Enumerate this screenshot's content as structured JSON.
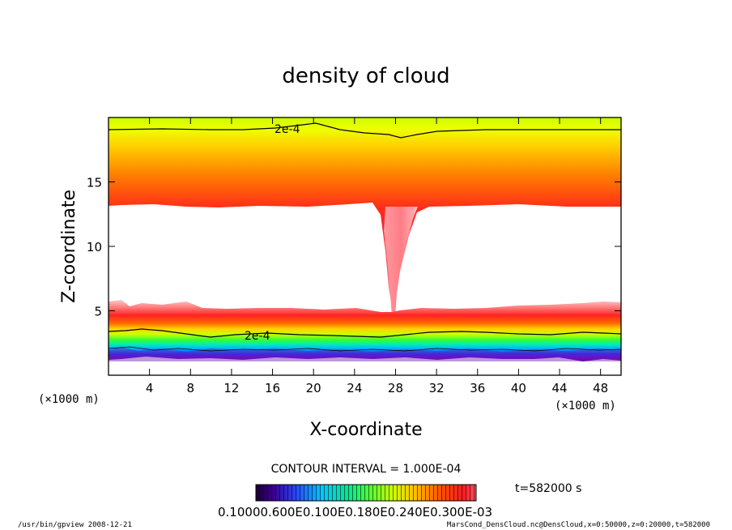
{
  "chart_data": {
    "type": "heatmap",
    "title": "density of cloud",
    "xlabel": "X-coordinate",
    "ylabel": "Z-coordinate",
    "xunit": "(×1000 m)",
    "yunit": "(×1000 m)",
    "xlim": [
      0,
      50
    ],
    "ylim": [
      0,
      20
    ],
    "xticks": [
      4,
      8,
      12,
      16,
      20,
      24,
      28,
      32,
      36,
      40,
      44,
      48
    ],
    "yticks": [
      5,
      10,
      15
    ],
    "contour_labels": [
      {
        "text": "2e-4",
        "x": 17,
        "z": 19.0
      },
      {
        "text": "2e-4",
        "x": 15,
        "z": 3.2
      }
    ],
    "contour_interval": "CONTOUR INTERVAL = 1.000E-04",
    "time_label": "t=582000 s",
    "colorbar_labels": "0.10000.600E0.100E0.180E0.240E0.300E-03",
    "footer_left": "/usr/bin/gpview   2008-12-21",
    "footer_right": "MarsCond_DensCloud.nc@DensCloud,x=0:50000,z=0:20000,t=582000"
  }
}
